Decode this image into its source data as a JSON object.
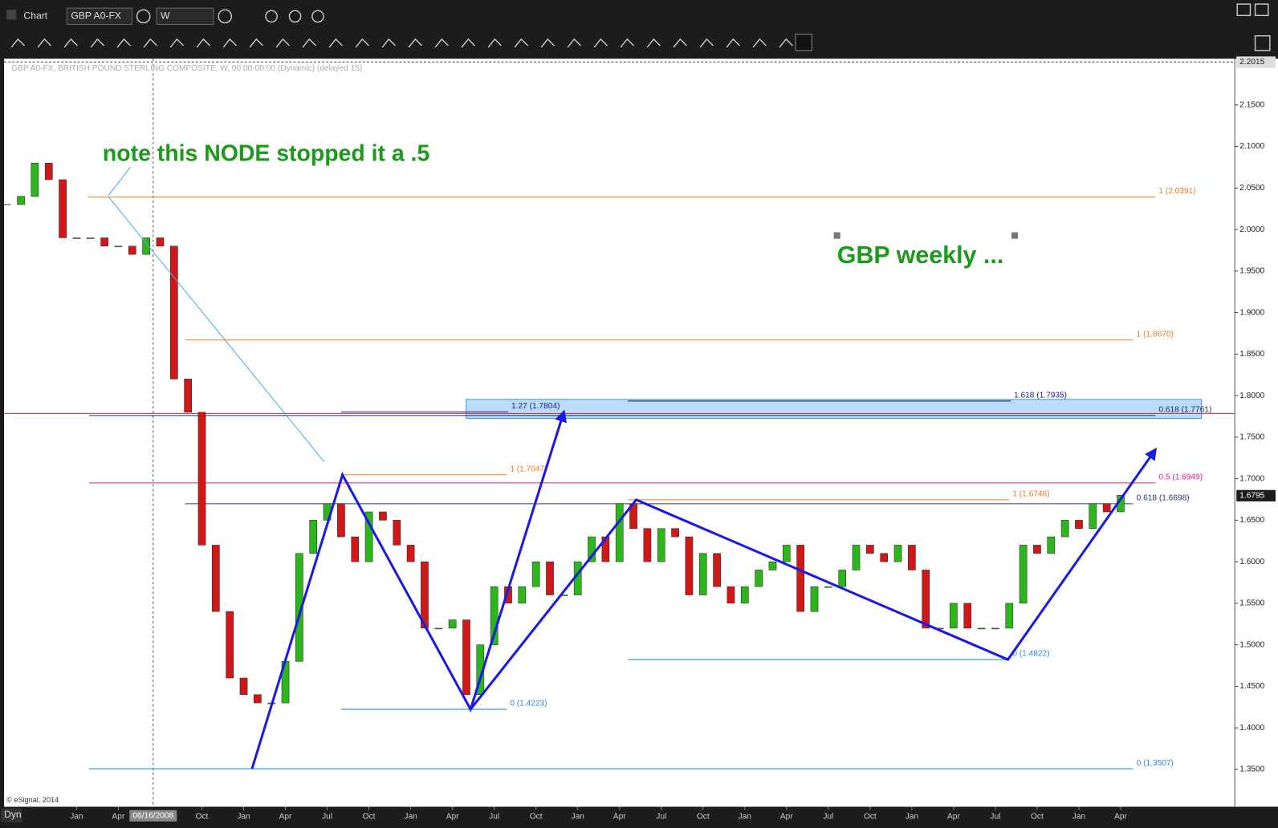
{
  "toolbar": {
    "window_title": "Chart",
    "symbol": "GBP A0-FX",
    "interval": "W",
    "dyn": "Dyn"
  },
  "chart_data": {
    "type": "candlestick",
    "info_line": "GBP A0-FX, BRITISH POUND STERLING COMPOSITE, W, 00:00-00:00 (Dynamic) (delayed 15)",
    "copyright": "© eSignal, 2014",
    "annotations": [
      "note this NODE stopped it a .5",
      "GBP weekly ..."
    ],
    "cursor": {
      "value": 5.5,
      "label": "06/16/2008"
    },
    "x": [
      -5,
      -4,
      -3,
      -2,
      -1,
      0,
      1,
      2,
      3,
      4,
      5,
      6,
      7,
      8,
      9,
      10,
      11,
      12,
      13,
      14,
      15,
      16,
      17,
      18,
      19,
      20,
      21,
      22,
      23,
      24,
      25,
      26,
      27,
      28,
      29,
      30,
      31,
      32,
      33,
      34,
      35,
      36,
      37,
      38,
      39,
      40,
      41,
      42,
      43,
      44,
      45,
      46,
      47,
      48,
      49,
      50,
      51,
      52,
      53,
      54,
      55,
      56,
      57,
      58,
      59,
      60,
      61,
      62,
      63,
      64,
      65,
      66,
      67,
      68,
      69,
      70,
      71,
      72,
      73,
      74,
      75
    ],
    "close": [
      2.03,
      2.04,
      2.08,
      2.06,
      1.99,
      1.99,
      1.99,
      1.98,
      1.98,
      1.97,
      1.99,
      1.98,
      1.82,
      1.78,
      1.62,
      1.54,
      1.46,
      1.44,
      1.43,
      1.43,
      1.48,
      1.61,
      1.65,
      1.67,
      1.63,
      1.6,
      1.66,
      1.65,
      1.62,
      1.6,
      1.52,
      1.52,
      1.53,
      1.44,
      1.5,
      1.57,
      1.55,
      1.57,
      1.6,
      1.56,
      1.56,
      1.6,
      1.63,
      1.6,
      1.67,
      1.64,
      1.6,
      1.64,
      1.63,
      1.56,
      1.61,
      1.57,
      1.55,
      1.57,
      1.59,
      1.6,
      1.62,
      1.54,
      1.57,
      1.57,
      1.59,
      1.62,
      1.61,
      1.6,
      1.62,
      1.59,
      1.52,
      1.52,
      1.55,
      1.52,
      1.52,
      1.52,
      1.55,
      1.62,
      1.61,
      1.63,
      1.65,
      1.64,
      1.67,
      1.66,
      1.68
    ],
    "up_color": "#2db51c",
    "down_color": "#d01818",
    "xlim": [
      -5.21,
      83.2
    ],
    "ylim": [
      1.3049,
      2.2057
    ],
    "xticks": [
      {
        "value": 0,
        "label": "Jan"
      },
      {
        "value": 3,
        "label": "Apr"
      },
      {
        "value": 9,
        "label": "Oct"
      },
      {
        "value": 12,
        "label": "Jan"
      },
      {
        "value": 15,
        "label": "Apr"
      },
      {
        "value": 18,
        "label": "Jul"
      },
      {
        "value": 21,
        "label": "Oct"
      },
      {
        "value": 24,
        "label": "Jan"
      },
      {
        "value": 27,
        "label": "Apr"
      },
      {
        "value": 30,
        "label": "Jul"
      },
      {
        "value": 33,
        "label": "Oct"
      },
      {
        "value": 36,
        "label": "Jan"
      },
      {
        "value": 39,
        "label": "Apr"
      },
      {
        "value": 42,
        "label": "Jul"
      },
      {
        "value": 45,
        "label": "Oct"
      },
      {
        "value": 48,
        "label": "Jan"
      },
      {
        "value": 51,
        "label": "Apr"
      },
      {
        "value": 54,
        "label": "Jul"
      },
      {
        "value": 57,
        "label": "Oct"
      },
      {
        "value": 60,
        "label": "Jan"
      },
      {
        "value": 63,
        "label": "Apr"
      },
      {
        "value": 66,
        "label": "Jul"
      },
      {
        "value": 69,
        "label": "Oct"
      },
      {
        "value": 72,
        "label": "Jan"
      },
      {
        "value": 75,
        "label": "Apr"
      }
    ],
    "yticks": [
      {
        "value": 1.35,
        "label": "1.3500"
      },
      {
        "value": 1.4,
        "label": "1.4000"
      },
      {
        "value": 1.45,
        "label": "1.4500"
      },
      {
        "value": 1.5,
        "label": "1.5000"
      },
      {
        "value": 1.55,
        "label": "1.5500"
      },
      {
        "value": 1.6,
        "label": "1.6000"
      },
      {
        "value": 1.65,
        "label": "1.6500"
      },
      {
        "value": 1.7,
        "label": "1.7000"
      },
      {
        "value": 1.75,
        "label": "1.7500"
      },
      {
        "value": 1.8,
        "label": "1.8000"
      },
      {
        "value": 1.85,
        "label": "1.8500"
      },
      {
        "value": 1.9,
        "label": "1.9000"
      },
      {
        "value": 1.95,
        "label": "1.9500"
      },
      {
        "value": 2,
        "label": "2.0000"
      },
      {
        "value": 2.05,
        "label": "2.0500"
      },
      {
        "value": 2.1,
        "label": "2.1000"
      },
      {
        "value": 2.15,
        "label": "2.1500"
      }
    ],
    "top_price": {
      "value": 2.2015,
      "label": "2.2015"
    },
    "last_price": {
      "value": 1.6795,
      "label": "1.6795"
    },
    "zone": {
      "top": 1.7955,
      "bottom": 1.7725,
      "from": 27.98,
      "to": 80.8
    },
    "levels": [
      {
        "value": 2.0391,
        "label": "1 (2.0391)",
        "color": "#f07a1f",
        "from": 0.8,
        "to": 77.5
      },
      {
        "value": 1.867,
        "label": "1 (1.8670)",
        "color": "#f07a1f",
        "from": 7.8,
        "to": 75.9
      },
      {
        "value": 1.7935,
        "label": "1.618 (1.7935)",
        "color": "#1a1aa0",
        "from": 39.6,
        "to": 67.1
      },
      {
        "value": 1.7804,
        "label": "1.27 (1.7804)",
        "color": "#1a1aa0",
        "from": 19,
        "to": 31
      },
      {
        "value": 1.7785,
        "color": "#e02020",
        "from": -5.2,
        "to": 83.2
      },
      {
        "value": 1.7761,
        "label": "0.618 (1.7761)",
        "color": "#1a2a70",
        "from": 0.9,
        "to": 77.5
      },
      {
        "value": 1.7047,
        "label": "1 (1.7047)",
        "color": "#f07a1f",
        "from": 19,
        "to": 30.9
      },
      {
        "value": 1.6949,
        "label": "0.5 (1.6949)",
        "color": "#e0208a",
        "from": 0.9,
        "to": 77.5
      },
      {
        "value": 1.6746,
        "label": "1 (1.6746)",
        "color": "#f07a1f",
        "from": 39.6,
        "to": 67
      },
      {
        "value": 1.6698,
        "label": "0.618 (1.6698)",
        "color": "#2a3a70",
        "from": 7.8,
        "to": 75.9
      },
      {
        "value": 1.4822,
        "label": "0 (1.4822)",
        "color": "#2a8ae0",
        "from": 39.6,
        "to": 67
      },
      {
        "value": 1.4223,
        "label": "0 (1.4223)",
        "color": "#2a8ae0",
        "from": 19,
        "to": 30.9
      },
      {
        "value": 1.3507,
        "label": "0 (1.3507)",
        "color": "#2a8ae0",
        "from": 0.9,
        "to": 75.9
      }
    ],
    "arrows": [
      {
        "color": "#1a1ae6",
        "x": [
          12.6,
          19.1,
          28.3,
          35
        ],
        "y": [
          1.3507,
          1.7047,
          1.4223,
          1.7804
        ]
      },
      {
        "color": "#1a1ae6",
        "x": [
          28.3,
          40.2,
          66.9,
          77.5
        ],
        "y": [
          1.4223,
          1.6746,
          1.4822,
          1.735
        ]
      },
      {
        "color": "#4aa8e8",
        "x": [
          2.3,
          17.8
        ],
        "y": [
          2.0391,
          1.72
        ]
      }
    ]
  }
}
